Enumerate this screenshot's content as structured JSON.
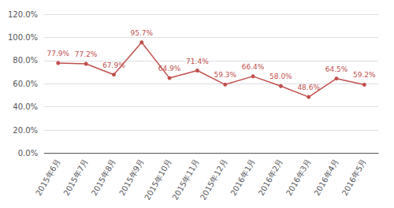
{
  "chart_data": {
    "type": "line",
    "categories": [
      "2015年6月",
      "2015年7月",
      "2015年8月",
      "2015年9月",
      "2015年10月",
      "2015年11月",
      "2015年12月",
      "2016年1月",
      "2016年2月",
      "2016年3月",
      "2016年4月",
      "2016年5月"
    ],
    "values": [
      77.9,
      77.2,
      67.9,
      95.7,
      64.9,
      71.4,
      59.3,
      66.4,
      58.0,
      48.6,
      64.5,
      59.2
    ],
    "value_labels": [
      "77.9%",
      "77.2%",
      "67.9%",
      "95.7%",
      "64.9%",
      "71.4%",
      "59.3%",
      "66.4%",
      "58.0%",
      "48.6%",
      "64.5%",
      "59.2%"
    ],
    "color": "#c0504d",
    "marker": "circle",
    "data_labels": true,
    "ylim": [
      0,
      120
    ],
    "yticks": [
      {
        "value": 0,
        "label": "0.0%"
      },
      {
        "value": 20,
        "label": "20.0%"
      },
      {
        "value": 40,
        "label": "40.0%"
      },
      {
        "value": 60,
        "label": "60.0%"
      },
      {
        "value": 80,
        "label": "80.0%"
      },
      {
        "value": 100,
        "label": "100.0%"
      },
      {
        "value": 120,
        "label": "120.0%"
      }
    ],
    "grid": true
  }
}
